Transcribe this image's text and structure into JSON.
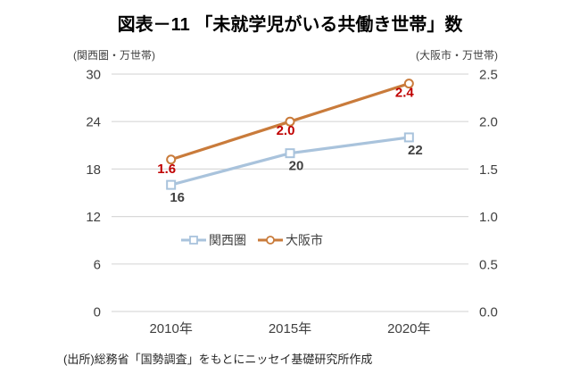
{
  "title": "図表－11 「未就学児がいる共働き世帯」数",
  "source_note": "(出所)総務省「国勢調査」をもとにニッセイ基礎研究所作成",
  "colors": {
    "gridline": "#d9d9d9",
    "tick_text": "#404040",
    "kansai_series": "#a9c3dc",
    "osaka_series": "#c97b3b",
    "kansai_point_label": "#404040",
    "osaka_point_label": "#c00000"
  },
  "chart_data": {
    "type": "line",
    "title": "図表－11 「未就学児がいる共働き世帯」数",
    "categories": [
      "2010年",
      "2015年",
      "2020年"
    ],
    "series": [
      {
        "key": "kansai",
        "name": "関西圏",
        "axis": "left",
        "marker": "square",
        "values": [
          16,
          20,
          22
        ],
        "point_labels": [
          "16",
          "20",
          "22"
        ],
        "color": "#a9c3dc",
        "label_color": "#404040",
        "label_offset": {
          "dx": 7,
          "dy": 19
        }
      },
      {
        "key": "osaka",
        "name": "大阪市",
        "axis": "right",
        "marker": "circle",
        "values": [
          1.6,
          2.0,
          2.4
        ],
        "point_labels": [
          "1.6",
          "2.0",
          "2.4"
        ],
        "color": "#c97b3b",
        "label_color": "#c00000",
        "label_offset": {
          "dx": -5,
          "dy": 15
        }
      }
    ],
    "left_axis": {
      "unit_label": "(関西圏・万世帯)",
      "min": 0,
      "max": 30,
      "ticks": [
        "30",
        "24",
        "18",
        "12",
        "6",
        "0"
      ]
    },
    "right_axis": {
      "unit_label": "(大阪市・万世帯)",
      "min": 0,
      "max": 2.5,
      "ticks": [
        "2.5",
        "2.0",
        "1.5",
        "1.0",
        "0.5",
        "0.0"
      ]
    },
    "grid": true,
    "legend": {
      "position": "inside-center",
      "entries": [
        "関西圏",
        "大阪市"
      ]
    }
  }
}
